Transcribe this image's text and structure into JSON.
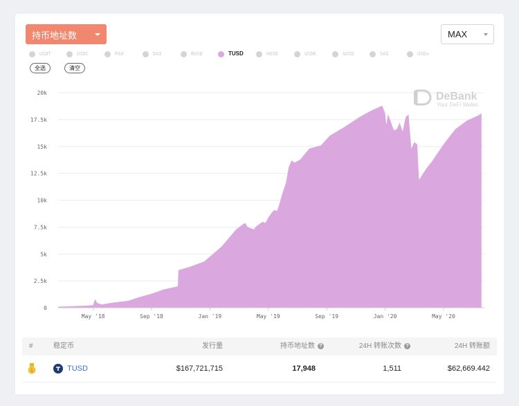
{
  "controls": {
    "metric_label": "持币地址数",
    "range_label": "MAX",
    "select_all": "全选",
    "clear": "清空"
  },
  "legend": [
    {
      "label": "USDT",
      "active": false
    },
    {
      "label": "USDC",
      "active": false
    },
    {
      "label": "PAX",
      "active": false
    },
    {
      "label": "DAI",
      "active": false
    },
    {
      "label": "BUSD",
      "active": false
    },
    {
      "label": "TUSD",
      "active": true
    },
    {
      "label": "HUSD",
      "active": false
    },
    {
      "label": "USDK",
      "active": false
    },
    {
      "label": "GUSD",
      "active": false
    },
    {
      "label": "SAI",
      "active": false
    },
    {
      "label": "USDx",
      "active": false
    }
  ],
  "watermark": {
    "brand": "DeBank",
    "tagline": "Your DeFi Wallet"
  },
  "chart_data": {
    "type": "area",
    "series_color": "#dba7df",
    "y_ticks": [
      "0",
      "2.5k",
      "5k",
      "7.5k",
      "10k",
      "12.5k",
      "15k",
      "17.5k",
      "20k"
    ],
    "ylim": [
      0,
      20000
    ],
    "x_ticks": [
      "May '18",
      "Sep '18",
      "Jan '19",
      "May '19",
      "Sep '19",
      "Jan '20",
      "May '20"
    ],
    "x_tick_index": [
      0.3,
      1.3,
      2.3,
      3.3,
      4.3,
      5.3,
      6.3
    ],
    "xlim": [
      -0.3,
      7.0
    ],
    "grid": true,
    "x": [
      -0.3,
      0.2,
      0.3,
      0.33,
      0.37,
      0.45,
      0.6,
      0.9,
      1.1,
      1.3,
      1.5,
      1.75,
      1.76,
      1.95,
      2.2,
      2.5,
      2.75,
      2.9,
      2.95,
      3.05,
      3.1,
      3.2,
      3.25,
      3.3,
      3.35,
      3.4,
      3.45,
      3.48,
      3.55,
      3.6,
      3.65,
      3.7,
      3.75,
      3.85,
      4.0,
      4.2,
      4.35,
      4.6,
      4.85,
      5.05,
      5.25,
      5.3,
      5.32,
      5.35,
      5.45,
      5.5,
      5.55,
      5.6,
      5.65,
      5.7,
      5.75,
      5.8,
      5.85,
      5.88,
      6.0,
      6.1,
      6.3,
      6.5,
      6.7,
      6.9,
      6.95
    ],
    "y": [
      100,
      200,
      250,
      800,
      450,
      300,
      450,
      650,
      1000,
      1300,
      1700,
      2000,
      3500,
      3800,
      4300,
      5700,
      7300,
      7900,
      7500,
      7300,
      7600,
      8000,
      7900,
      8400,
      8800,
      9100,
      9000,
      9500,
      10800,
      11600,
      13100,
      13700,
      13500,
      13800,
      14800,
      15100,
      16000,
      16800,
      17700,
      18300,
      18800,
      18100,
      17000,
      18000,
      16500,
      16600,
      17200,
      16400,
      17700,
      18000,
      14800,
      15400,
      15200,
      11900,
      12900,
      13600,
      15200,
      16600,
      17400,
      17900,
      18100
    ]
  },
  "table": {
    "headers": {
      "index": "#",
      "coin": "稳定币",
      "supply": "发行量",
      "holders": "持币地址数",
      "transfers": "24H 转账次数",
      "volume": "24H 转账额"
    },
    "rows": [
      {
        "coin": "TUSD",
        "supply": "$167,721,715",
        "holders": "17,948",
        "transfers": "1,511",
        "volume": "$62,669.442"
      }
    ]
  }
}
